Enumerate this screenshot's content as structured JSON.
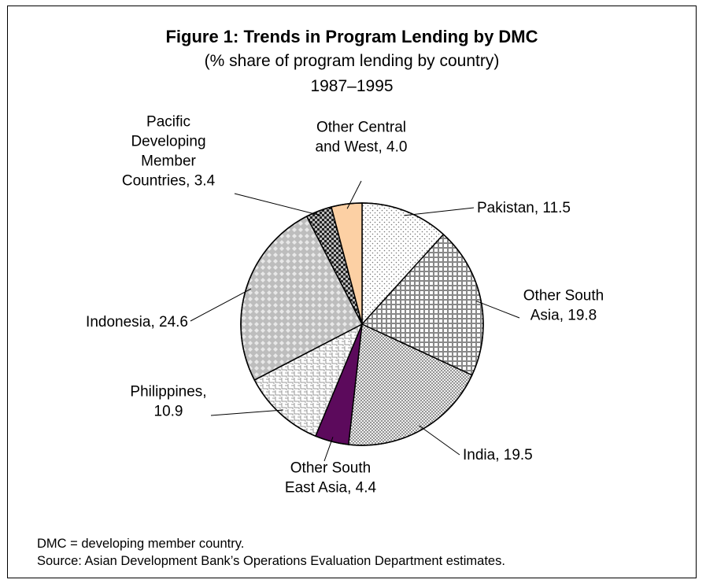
{
  "figure": {
    "title": "Figure 1: Trends in Program Lending by DMC",
    "subtitle": "(% share of program lending by country)",
    "period": "1987–1995"
  },
  "chart_data": {
    "type": "pie",
    "title": "Figure 1: Trends in Program Lending by DMC",
    "subtitle": "(% share of program lending by country)",
    "slices": [
      {
        "label": "Pakistan",
        "value": 11.5,
        "text": "Pakistan, 11.5",
        "pattern": "dots-sparse",
        "color": "#ffffff"
      },
      {
        "label": "Other South Asia",
        "value": 19.8,
        "text": "Other South Asia, 19.8",
        "lines": [
          "Other South",
          "Asia, 19.8"
        ],
        "pattern": "grid",
        "color": "#ffffff"
      },
      {
        "label": "India",
        "value": 19.5,
        "text": "India, 19.5",
        "pattern": "dots-dense",
        "color": "#ffffff"
      },
      {
        "label": "Other South East Asia",
        "value": 4.4,
        "text": "Other South East Asia, 4.4",
        "lines": [
          "Other South",
          "East Asia, 4.4"
        ],
        "pattern": "solid",
        "color": "#5c0a5c"
      },
      {
        "label": "Philippines",
        "value": 10.9,
        "text": "Philippines, 10.9",
        "lines": [
          "Philippines,",
          "10.9"
        ],
        "pattern": "weave",
        "color": "#ffffff"
      },
      {
        "label": "Indonesia",
        "value": 24.6,
        "text": "Indonesia, 24.6",
        "pattern": "diamond",
        "color": "#ffffff"
      },
      {
        "label": "Pacific Developing Member Countries",
        "value": 3.4,
        "text": "Pacific Developing Member Countries, 3.4",
        "lines": [
          "Pacific",
          "Developing",
          "Member",
          "Countries, 3.4"
        ],
        "pattern": "checker-dark",
        "color": "#333333"
      },
      {
        "label": "Other Central and West",
        "value": 4.0,
        "text": "Other Central and West, 4.0",
        "lines": [
          "Other Central",
          "and West, 4.0"
        ],
        "pattern": "solid",
        "color": "#fcd0a4"
      }
    ]
  },
  "notes": {
    "abbreviation": "DMC = developing member country.",
    "source": "Source: Asian Development Bank’s Operations Evaluation Department estimates."
  }
}
